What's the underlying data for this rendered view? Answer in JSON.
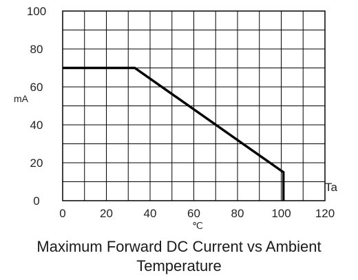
{
  "chart_data": {
    "type": "line",
    "title": "Maximum Forward DC Current vs Ambient Temperature",
    "title_lines": [
      "Maximum Forward DC Current vs Ambient",
      "Temperature"
    ],
    "xlabel": "℃",
    "ylabel": "mA",
    "x_axis_end_label": "Ta",
    "xlim": [
      0,
      120
    ],
    "ylim": [
      0,
      100
    ],
    "x_ticks": [
      0,
      20,
      40,
      60,
      80,
      100,
      120
    ],
    "y_ticks": [
      0,
      20,
      40,
      60,
      80,
      100
    ],
    "grid": true,
    "grid_x_step": 10,
    "grid_y_step": 10,
    "series": [
      {
        "x": [
          0,
          33,
          101,
          101
        ],
        "y": [
          70,
          70,
          15,
          0
        ],
        "color": "#000000"
      }
    ]
  }
}
